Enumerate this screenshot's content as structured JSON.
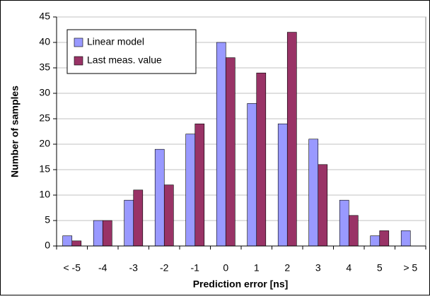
{
  "chart_data": {
    "type": "bar",
    "xlabel": "Prediction error [ns]",
    "ylabel": "Number of samples",
    "categories": [
      "< -5",
      "-4",
      "-3",
      "-2",
      "-1",
      "0",
      "1",
      "2",
      "3",
      "4",
      "5",
      "> 5"
    ],
    "series": [
      {
        "name": "Linear model",
        "color": "#9999ff",
        "values": [
          2,
          5,
          9,
          19,
          22,
          40,
          28,
          24,
          21,
          9,
          2,
          3
        ]
      },
      {
        "name": "Last meas. value",
        "color": "#993366",
        "values": [
          1,
          5,
          11,
          12,
          24,
          37,
          34,
          42,
          16,
          6,
          3,
          0
        ]
      }
    ],
    "ylim": [
      0,
      45
    ],
    "yticks": [
      0,
      5,
      10,
      15,
      20,
      25,
      30,
      35,
      40,
      45
    ],
    "grid": true,
    "legend": "upper left"
  }
}
